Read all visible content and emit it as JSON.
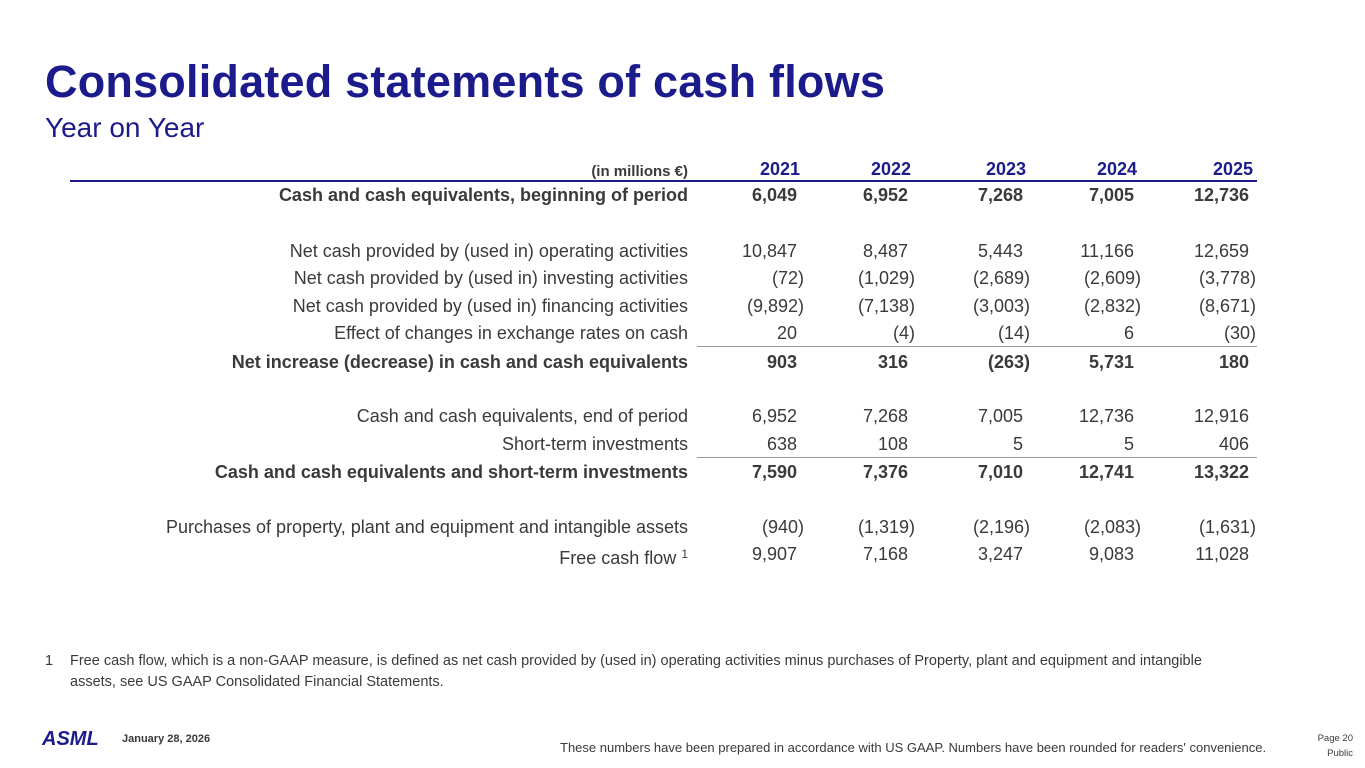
{
  "title": "Consolidated statements of cash flows",
  "subtitle": "Year on Year",
  "table": {
    "unit_label": "(in millions €)",
    "years": [
      "2021",
      "2022",
      "2023",
      "2024",
      "2025"
    ],
    "rows": [
      {
        "label": "Cash and cash equivalents, beginning of period",
        "values": [
          "6,049",
          "6,952",
          "7,268",
          "7,005",
          "12,736"
        ]
      },
      {
        "label": "Net cash provided by (used in) operating activities",
        "values": [
          "10,847",
          "8,487",
          "5,443",
          "11,166",
          "12,659"
        ]
      },
      {
        "label": "Net cash provided by (used in) investing activities",
        "values": [
          "(72)",
          "(1,029)",
          "(2,689)",
          "(2,609)",
          "(3,778)"
        ]
      },
      {
        "label": "Net cash provided by (used in) financing activities",
        "values": [
          "(9,892)",
          "(7,138)",
          "(3,003)",
          "(2,832)",
          "(8,671)"
        ]
      },
      {
        "label": "Effect of changes in exchange rates on cash",
        "values": [
          "20",
          "(4)",
          "(14)",
          "6",
          "(30)"
        ]
      },
      {
        "label": "Net increase (decrease) in cash and cash equivalents",
        "values": [
          "903",
          "316",
          "(263)",
          "5,731",
          "180"
        ]
      },
      {
        "label": "Cash and cash equivalents, end of period",
        "values": [
          "6,952",
          "7,268",
          "7,005",
          "12,736",
          "12,916"
        ]
      },
      {
        "label": "Short-term investments",
        "values": [
          "638",
          "108",
          "5",
          "5",
          "406"
        ]
      },
      {
        "label": "Cash and cash equivalents and short-term investments",
        "values": [
          "7,590",
          "7,376",
          "7,010",
          "12,741",
          "13,322"
        ]
      },
      {
        "label": "Purchases of property, plant and equipment and intangible assets",
        "values": [
          "(940)",
          "(1,319)",
          "(2,196)",
          "(2,083)",
          "(1,631)"
        ]
      },
      {
        "label": "Free cash flow",
        "footnote_ref": "1",
        "values": [
          "9,907",
          "7,168",
          "3,247",
          "9,083",
          "11,028"
        ]
      }
    ]
  },
  "footnote": {
    "number": "1",
    "text": "Free cash flow, which is a non-GAAP measure, is defined as net cash provided by (used in) operating activities minus purchases of Property, plant and equipment and intangible assets, see US GAAP Consolidated Financial Statements."
  },
  "footer": {
    "logo": "ASML",
    "date": "January 28, 2026",
    "disclaimer": "These numbers have been prepared in accordance with US GAAP.  Numbers have been rounded for readers' convenience.",
    "page": "Page 20",
    "classification": "Public"
  },
  "colors": {
    "brand": "#1c1b8c",
    "text": "#3a3a3a"
  }
}
